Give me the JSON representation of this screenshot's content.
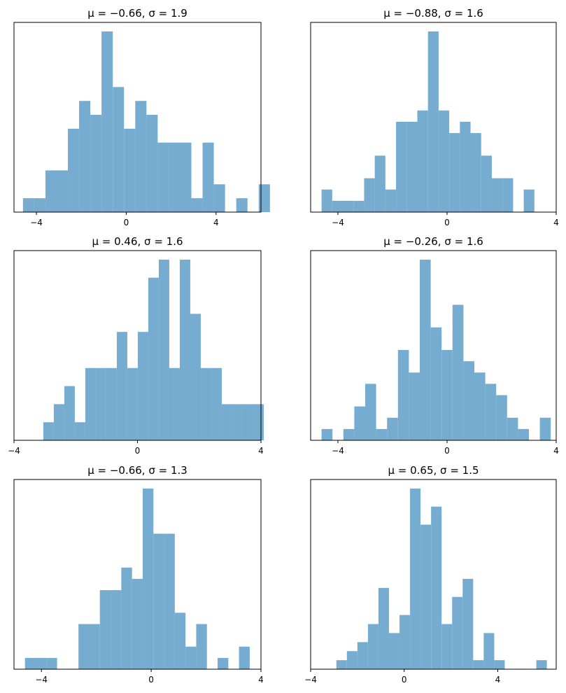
{
  "chart_data": [
    {
      "type": "bar",
      "title": "μ = −0.66,    σ = 1.9",
      "xlim": [
        -5.0,
        6.0
      ],
      "xticks": [
        -4,
        0,
        4
      ],
      "xtick_labels": [
        "−4",
        "0",
        "4"
      ],
      "bin_start": -4.6,
      "bin_width": 0.5,
      "counts": [
        1,
        1,
        3,
        3,
        6,
        8,
        7,
        13,
        9,
        6,
        8,
        7,
        5,
        5,
        5,
        1,
        5,
        2,
        0,
        1,
        0,
        2
      ]
    },
    {
      "type": "bar",
      "title": "μ = −0.88,    σ = 1.6",
      "xlim": [
        -5.0,
        4.0
      ],
      "xticks": [
        -4,
        0,
        4
      ],
      "xtick_labels": [
        "−4",
        "0",
        "4"
      ],
      "bin_start": -4.6,
      "bin_width": 0.39,
      "counts": [
        2,
        1,
        1,
        1,
        3,
        5,
        2,
        8,
        8,
        9,
        16,
        9,
        7,
        8,
        7,
        5,
        3,
        3,
        0,
        2
      ]
    },
    {
      "type": "bar",
      "title": "μ = 0.46,    σ = 1.6",
      "xlim": [
        -4.0,
        4.0
      ],
      "xticks": [
        -4,
        0,
        4
      ],
      "xtick_labels": [
        "−4",
        "0",
        "4"
      ],
      "bin_start": -3.05,
      "bin_width": 0.34,
      "counts": [
        1,
        2,
        3,
        1,
        4,
        4,
        4,
        6,
        4,
        6,
        9,
        10,
        4,
        10,
        7,
        4,
        4,
        2,
        2,
        2,
        2
      ]
    },
    {
      "type": "bar",
      "title": "μ = −0.26,    σ = 1.6",
      "xlim": [
        -5.0,
        4.0
      ],
      "xticks": [
        -4,
        0,
        4
      ],
      "xtick_labels": [
        "−4",
        "0",
        "4"
      ],
      "bin_start": -4.6,
      "bin_width": 0.4,
      "counts": [
        1,
        0,
        1,
        3,
        5,
        1,
        2,
        8,
        6,
        16,
        10,
        8,
        12,
        7,
        6,
        5,
        4,
        2,
        1,
        0,
        2
      ]
    },
    {
      "type": "bar",
      "title": "μ = −0.66,    σ = 1.3",
      "xlim": [
        -5.0,
        4.0
      ],
      "xticks": [
        -4,
        0,
        4
      ],
      "xtick_labels": [
        "−4",
        "0",
        "4"
      ],
      "bin_start": -4.6,
      "bin_width": 0.39,
      "counts": [
        1,
        1,
        1,
        0,
        0,
        4,
        4,
        7,
        7,
        9,
        8,
        16,
        12,
        12,
        5,
        2,
        4,
        0,
        1,
        0,
        2
      ]
    },
    {
      "type": "bar",
      "title": "μ = 0.65,    σ = 1.5",
      "xlim": [
        -4.0,
        6.5
      ],
      "xticks": [
        -4,
        0,
        4
      ],
      "xtick_labels": [
        "−4",
        "0",
        "4"
      ],
      "bin_start": -2.9,
      "bin_width": 0.45,
      "counts": [
        1,
        2,
        3,
        5,
        9,
        4,
        6,
        20,
        16,
        18,
        5,
        8,
        10,
        1,
        4,
        1,
        0,
        0,
        0,
        1
      ]
    }
  ]
}
